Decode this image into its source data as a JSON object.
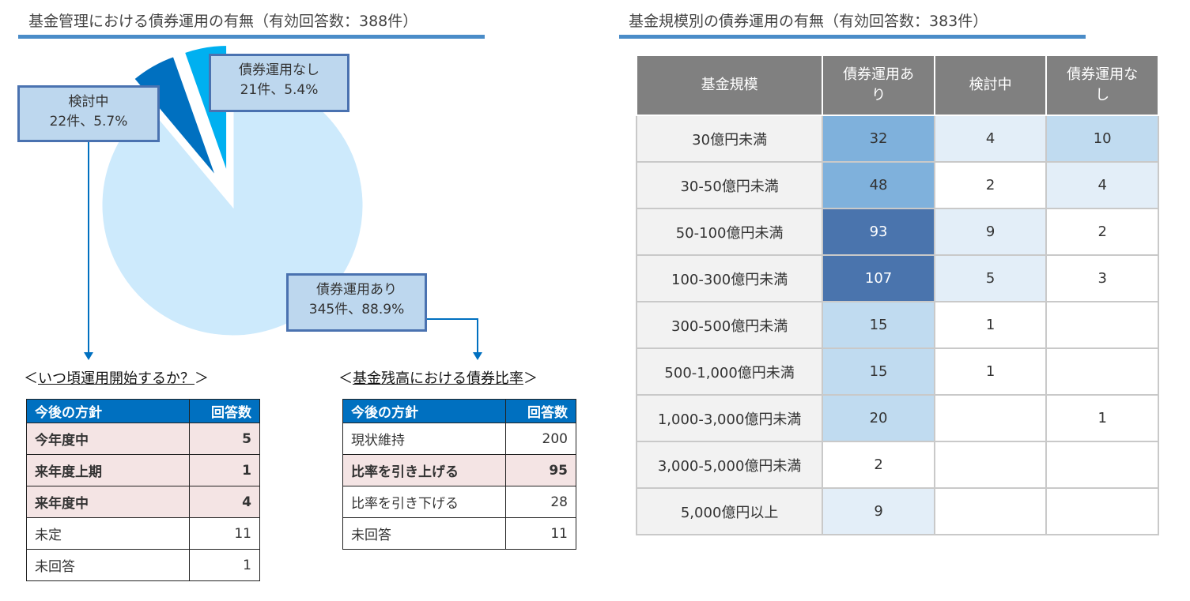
{
  "left_title": "基金管理における債券運用の有無（有効回答数：388件）",
  "right_title": "基金規模別の債券運用の有無（有効回答数：383件）",
  "chart_data": [
    {
      "type": "pie",
      "title": "基金管理における債券運用の有無（有効回答数：388件）",
      "slices": [
        {
          "name": "債券運用あり",
          "count": 345,
          "percent": 88.9,
          "label": "345件、88.9%",
          "color": "#cdeafc"
        },
        {
          "name": "検討中",
          "count": 22,
          "percent": 5.7,
          "label": "22件、5.7%",
          "color": "#0070c0"
        },
        {
          "name": "債券運用なし",
          "count": 21,
          "percent": 5.4,
          "label": "21件、5.4%",
          "color": "#00b0f0"
        }
      ]
    },
    {
      "type": "table",
      "title": "基金規模別の債券運用の有無（有効回答数：383件）",
      "columns": [
        "基金規模",
        "債券運用あり",
        "検討中",
        "債券運用なし"
      ],
      "rows": [
        [
          "30億円未満",
          "32",
          "4",
          "10"
        ],
        [
          "30-50億円未満",
          "48",
          "2",
          "4"
        ],
        [
          "50-100億円未満",
          "93",
          "9",
          "2"
        ],
        [
          "100-300億円未満",
          "107",
          "5",
          "3"
        ],
        [
          "300-500億円未満",
          "15",
          "1",
          ""
        ],
        [
          "500-1,000億円未満",
          "15",
          "1",
          ""
        ],
        [
          "1,000-3,000億円未満",
          "20",
          "",
          "1"
        ],
        [
          "3,000-5,000億円未満",
          "2",
          "",
          ""
        ],
        [
          "5,000億円以上",
          "9",
          "",
          ""
        ]
      ],
      "heat_colors": {
        "0": "#ffffff",
        "1": "#e3eef8",
        "2": "#c0dbf0",
        "3": "#7fb1dc",
        "4": "#4a74ad"
      },
      "heat_levels": [
        [
          3,
          1,
          2
        ],
        [
          3,
          0,
          1
        ],
        [
          4,
          1,
          0
        ],
        [
          4,
          1,
          0
        ],
        [
          2,
          0,
          0
        ],
        [
          2,
          0,
          0
        ],
        [
          2,
          0,
          0
        ],
        [
          0,
          0,
          0
        ],
        [
          1,
          0,
          0
        ]
      ]
    }
  ],
  "timing": {
    "title": "いつ頃運用開始するか？",
    "headers": [
      "今後の方針",
      "回答数"
    ],
    "rows": [
      {
        "label": "今年度中",
        "value": "5",
        "highlight": true
      },
      {
        "label": "来年度上期",
        "value": "1",
        "highlight": true
      },
      {
        "label": "来年度中",
        "value": "4",
        "highlight": true
      },
      {
        "label": "未定",
        "value": "11",
        "highlight": false
      },
      {
        "label": "未回答",
        "value": "1",
        "highlight": false
      }
    ]
  },
  "ratio": {
    "title": "基金残高における債券比率",
    "headers": [
      "今後の方針",
      "回答数"
    ],
    "rows": [
      {
        "label": "現状維持",
        "value": "200",
        "highlight": false
      },
      {
        "label": "比率を引き上げる",
        "value": "95",
        "highlight": true
      },
      {
        "label": "比率を引き下げる",
        "value": "28",
        "highlight": false
      },
      {
        "label": "未回答",
        "value": "11",
        "highlight": false
      }
    ]
  }
}
